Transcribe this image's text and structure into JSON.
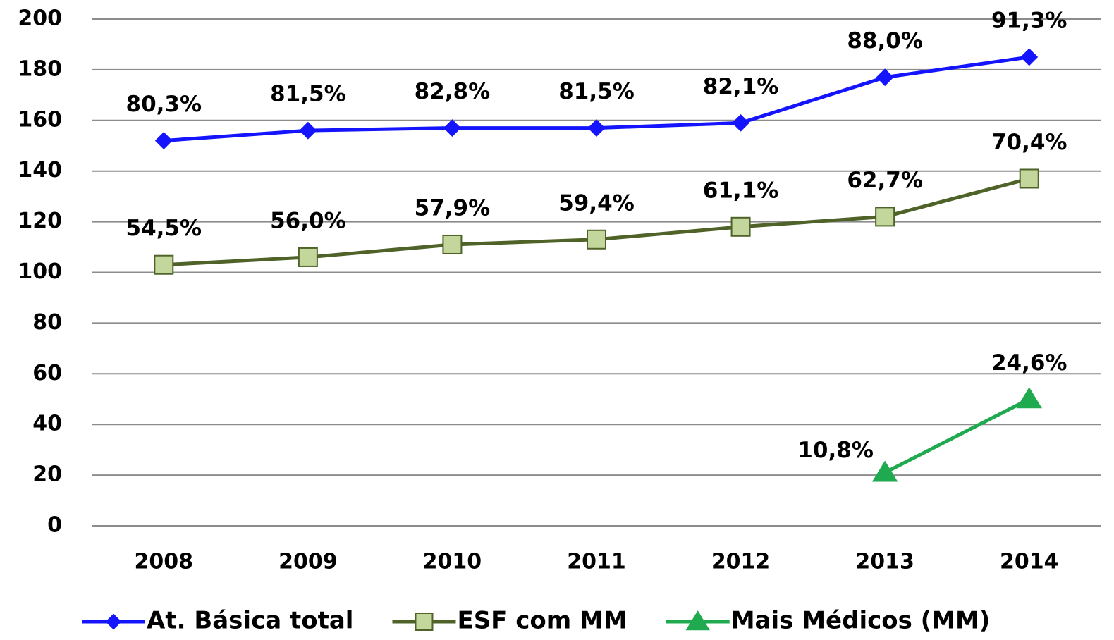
{
  "chart_data": {
    "type": "line",
    "categories": [
      "2008",
      "2009",
      "2010",
      "2011",
      "2012",
      "2013",
      "2014"
    ],
    "series": [
      {
        "name": "At. Básica total",
        "color": "#1414ff",
        "marker": "diamond",
        "marker_fill": "#1414ff",
        "values": [
          152,
          156,
          157,
          157,
          159,
          177,
          185
        ],
        "data_labels": [
          "80,3%",
          "81,5%",
          "82,8%",
          "81,5%",
          "82,1%",
          "88,0%",
          "91,3%"
        ]
      },
      {
        "name": "ESF com MM",
        "color": "#4f6228",
        "marker": "square",
        "marker_fill": "#c3d69b",
        "values": [
          103,
          106,
          111,
          113,
          118,
          122,
          137
        ],
        "data_labels": [
          "54,5%",
          "56,0%",
          "57,9%",
          "59,4%",
          "61,1%",
          "62,7%",
          "70,4%"
        ]
      },
      {
        "name": "Mais Médicos (MM)",
        "color": "#1faa50",
        "marker": "triangle",
        "marker_fill": "#1faa50",
        "values": [
          null,
          null,
          null,
          null,
          null,
          21,
          50
        ],
        "data_labels": [
          null,
          null,
          null,
          null,
          null,
          "10,8%",
          "24,6%"
        ]
      }
    ],
    "ylim": [
      0,
      200
    ],
    "yticks": [
      0,
      20,
      40,
      60,
      80,
      100,
      120,
      140,
      160,
      180,
      200
    ],
    "grid": true,
    "legend": "bottom"
  }
}
